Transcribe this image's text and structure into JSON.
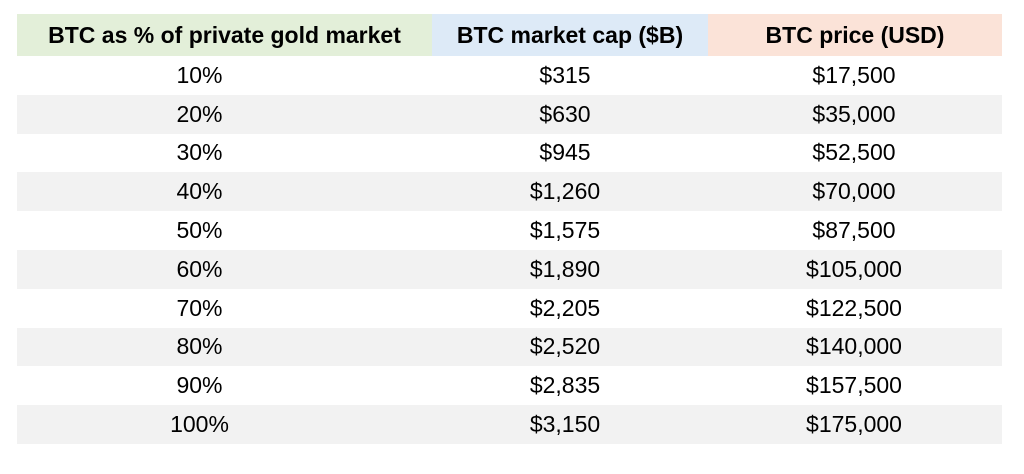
{
  "chart_data": {
    "type": "table",
    "columns": [
      "BTC as % of private gold market",
      "BTC market cap ($B)",
      "BTC price (USD)"
    ],
    "header_colors": [
      "#e3efd9",
      "#ddeaf7",
      "#fbe3d8"
    ],
    "stripe_color": "#f2f2f2",
    "rows": [
      [
        "10%",
        "$315",
        "$17,500"
      ],
      [
        "20%",
        "$630",
        "$35,000"
      ],
      [
        "30%",
        "$945",
        "$52,500"
      ],
      [
        "40%",
        "$1,260",
        "$70,000"
      ],
      [
        "50%",
        "$1,575",
        "$87,500"
      ],
      [
        "60%",
        "$1,890",
        "$105,000"
      ],
      [
        "70%",
        "$2,205",
        "$122,500"
      ],
      [
        "80%",
        "$2,520",
        "$140,000"
      ],
      [
        "90%",
        "$2,835",
        "$157,500"
      ],
      [
        "100%",
        "$3,150",
        "$175,000"
      ]
    ]
  }
}
